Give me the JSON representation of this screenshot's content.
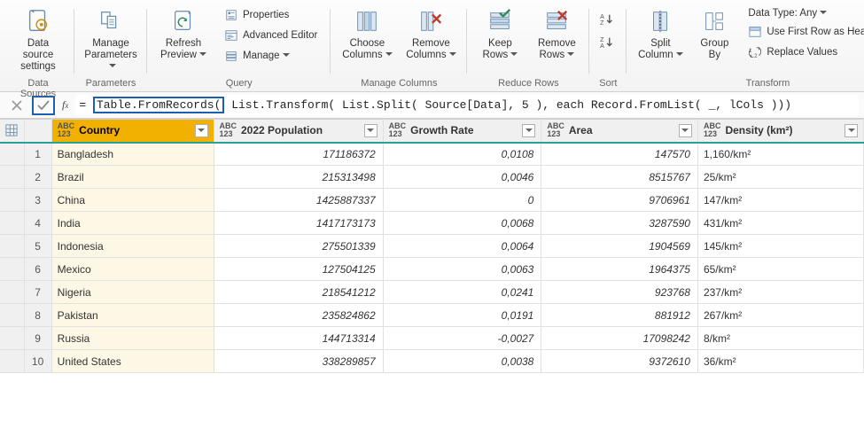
{
  "ribbon": {
    "groups": {
      "data_sources": {
        "label": "Data Sources",
        "data_source_settings": "Data source\nsettings"
      },
      "parameters": {
        "label": "Parameters",
        "manage_parameters": "Manage\nParameters"
      },
      "query": {
        "label": "Query",
        "refresh_preview": "Refresh\nPreview",
        "properties": "Properties",
        "advanced_editor": "Advanced Editor",
        "manage": "Manage"
      },
      "manage_columns": {
        "label": "Manage Columns",
        "choose_columns": "Choose\nColumns",
        "remove_columns": "Remove\nColumns"
      },
      "reduce_rows": {
        "label": "Reduce Rows",
        "keep_rows": "Keep\nRows",
        "remove_rows": "Remove\nRows"
      },
      "sort": {
        "label": "Sort"
      },
      "transform": {
        "label": "Transform",
        "split_column": "Split\nColumn",
        "group_by": "Group\nBy",
        "data_type": "Data Type: Any",
        "first_row_headers": "Use First Row as Headers",
        "replace_values": "Replace Values"
      }
    }
  },
  "formula": {
    "prefix": "= ",
    "highlight": "Table.FromRecords(",
    "rest": " List.Transform( List.Split( Source[Data], 5 ), each Record.FromList( _, lCols )))"
  },
  "columns": [
    {
      "key": "country",
      "label": "Country",
      "selected": true
    },
    {
      "key": "pop",
      "label": "2022 Population"
    },
    {
      "key": "growth",
      "label": "Growth Rate"
    },
    {
      "key": "area",
      "label": "Area"
    },
    {
      "key": "density",
      "label": "Density (km²)"
    }
  ],
  "type_glyph_top": "ABC",
  "type_glyph_bot": "123",
  "rows": [
    {
      "n": "1",
      "country": "Bangladesh",
      "pop": "171186372",
      "growth": "0,0108",
      "area": "147570",
      "density": "1,160/km²"
    },
    {
      "n": "2",
      "country": "Brazil",
      "pop": "215313498",
      "growth": "0,0046",
      "area": "8515767",
      "density": "25/km²"
    },
    {
      "n": "3",
      "country": "China",
      "pop": "1425887337",
      "growth": "0",
      "area": "9706961",
      "density": "147/km²"
    },
    {
      "n": "4",
      "country": "India",
      "pop": "1417173173",
      "growth": "0,0068",
      "area": "3287590",
      "density": "431/km²"
    },
    {
      "n": "5",
      "country": "Indonesia",
      "pop": "275501339",
      "growth": "0,0064",
      "area": "1904569",
      "density": "145/km²"
    },
    {
      "n": "6",
      "country": "Mexico",
      "pop": "127504125",
      "growth": "0,0063",
      "area": "1964375",
      "density": "65/km²"
    },
    {
      "n": "7",
      "country": "Nigeria",
      "pop": "218541212",
      "growth": "0,0241",
      "area": "923768",
      "density": "237/km²"
    },
    {
      "n": "8",
      "country": "Pakistan",
      "pop": "235824862",
      "growth": "0,0191",
      "area": "881912",
      "density": "267/km²"
    },
    {
      "n": "9",
      "country": "Russia",
      "pop": "144713314",
      "growth": "-0,0027",
      "area": "17098242",
      "density": "8/km²"
    },
    {
      "n": "10",
      "country": "United States",
      "pop": "338289857",
      "growth": "0,0038",
      "area": "9372610",
      "density": "36/km²"
    }
  ],
  "colors": {
    "selected_header": "#f2b100",
    "header_underline": "#2aa198",
    "highlight_box": "#1a5fb4"
  }
}
